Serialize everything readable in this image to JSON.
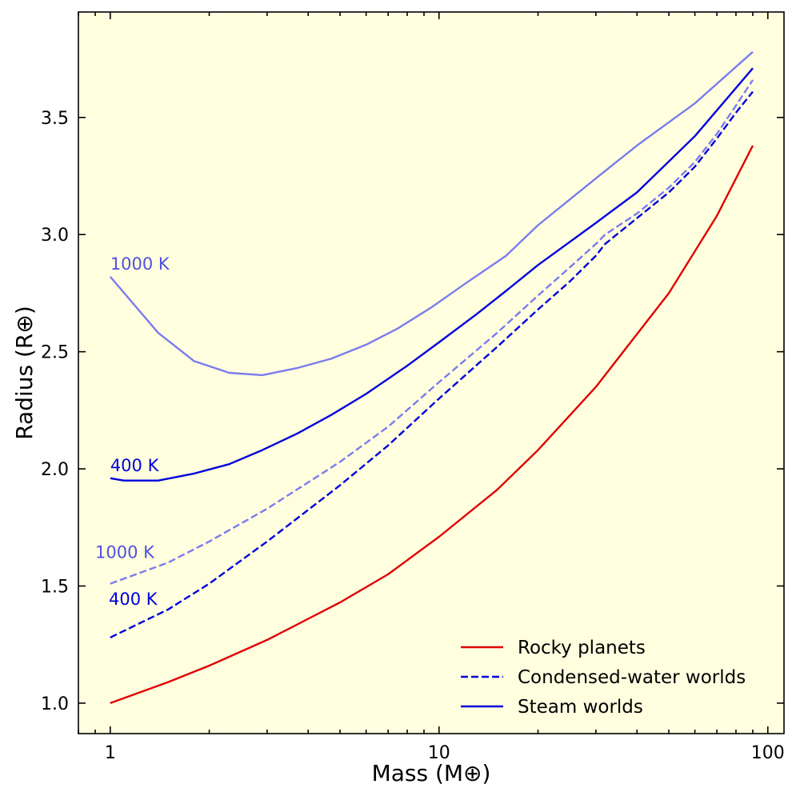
{
  "chart_data": {
    "type": "line",
    "xscale": "log",
    "xlabel": "Mass (M⊕)",
    "ylabel": "Radius (R⊕)",
    "xlim": [
      0.8,
      112
    ],
    "ylim": [
      0.87,
      3.95
    ],
    "xticks": [
      1,
      10,
      100
    ],
    "xtick_labels": [
      "1",
      "10",
      "100"
    ],
    "yticks": [
      1.0,
      1.5,
      2.0,
      2.5,
      3.0,
      3.5
    ],
    "ytick_labels": [
      "1.0",
      "1.5",
      "2.0",
      "2.5",
      "3.0",
      "3.5"
    ],
    "background": "#ffffe0",
    "grid": false,
    "legend_placement": "lower-right",
    "series": [
      {
        "name": "Rocky planets",
        "color": "#e00000",
        "style": "solid",
        "in_legend": true,
        "x": [
          1,
          1.5,
          2,
          3,
          5,
          7,
          10,
          15,
          20,
          30,
          50,
          70,
          90
        ],
        "y": [
          1.0,
          1.09,
          1.16,
          1.27,
          1.43,
          1.55,
          1.71,
          1.91,
          2.08,
          2.35,
          2.75,
          3.08,
          3.38
        ]
      },
      {
        "name": "Condensed-water worlds",
        "label": "400 K",
        "color": "#0000dd",
        "style": "dashed",
        "in_legend": true,
        "x": [
          1,
          1.5,
          2,
          3,
          5,
          7,
          10,
          15,
          20,
          25,
          30,
          32,
          40,
          50,
          60,
          70,
          80,
          90
        ],
        "y": [
          1.28,
          1.4,
          1.51,
          1.69,
          1.93,
          2.1,
          2.3,
          2.52,
          2.68,
          2.8,
          2.91,
          2.96,
          3.07,
          3.18,
          3.29,
          3.41,
          3.52,
          3.61
        ]
      },
      {
        "name": "Condensed-water worlds",
        "label": "1000 K",
        "color": "#7b7bee",
        "style": "dashed",
        "in_legend": false,
        "x": [
          1,
          1.5,
          2,
          3,
          5,
          7,
          10,
          15,
          20,
          25,
          30,
          32,
          40,
          50,
          60,
          70,
          80,
          90
        ],
        "y": [
          1.51,
          1.6,
          1.69,
          1.83,
          2.03,
          2.18,
          2.37,
          2.58,
          2.74,
          2.86,
          2.96,
          3.0,
          3.09,
          3.2,
          3.31,
          3.43,
          3.55,
          3.66
        ]
      },
      {
        "name": "Steam worlds",
        "label": "400 K",
        "color": "#0000dd",
        "style": "solid",
        "in_legend": true,
        "x": [
          1,
          1.1,
          1.4,
          1.8,
          2.3,
          2.9,
          3.7,
          4.7,
          6,
          8,
          10,
          13,
          16,
          20,
          30,
          40,
          60,
          90
        ],
        "y": [
          1.96,
          1.95,
          1.95,
          1.98,
          2.02,
          2.08,
          2.15,
          2.23,
          2.32,
          2.44,
          2.54,
          2.66,
          2.76,
          2.87,
          3.05,
          3.18,
          3.42,
          3.71
        ]
      },
      {
        "name": "Steam worlds",
        "label": "1000 K",
        "color": "#7b7bee",
        "style": "solid",
        "in_legend": false,
        "x": [
          1,
          1.4,
          1.8,
          2.3,
          2.9,
          3.7,
          4.7,
          6,
          7.5,
          9.5,
          12,
          16,
          20,
          30,
          40,
          60,
          90
        ],
        "y": [
          2.82,
          2.58,
          2.46,
          2.41,
          2.4,
          2.43,
          2.47,
          2.53,
          2.6,
          2.69,
          2.79,
          2.91,
          3.04,
          3.24,
          3.38,
          3.56,
          3.78
        ]
      }
    ],
    "annotations": [
      {
        "text": "1000 K",
        "x": 1.0,
        "y": 2.85,
        "color": "#5050e0",
        "anchor": "start"
      },
      {
        "text": "400 K",
        "x": 1.0,
        "y": 1.99,
        "color": "#0000dd",
        "anchor": "start"
      },
      {
        "text": "1000 K",
        "x": 0.9,
        "y": 1.62,
        "color": "#5050e0",
        "anchor": "start"
      },
      {
        "text": "400 K",
        "x": 0.99,
        "y": 1.42,
        "color": "#0000dd",
        "anchor": "start"
      }
    ],
    "legend": [
      {
        "label": "Rocky planets",
        "color": "#e00000",
        "style": "solid"
      },
      {
        "label": "Condensed-water worlds",
        "color": "#0000dd",
        "style": "dashed"
      },
      {
        "label": "Steam worlds",
        "color": "#0000dd",
        "style": "solid"
      }
    ]
  }
}
